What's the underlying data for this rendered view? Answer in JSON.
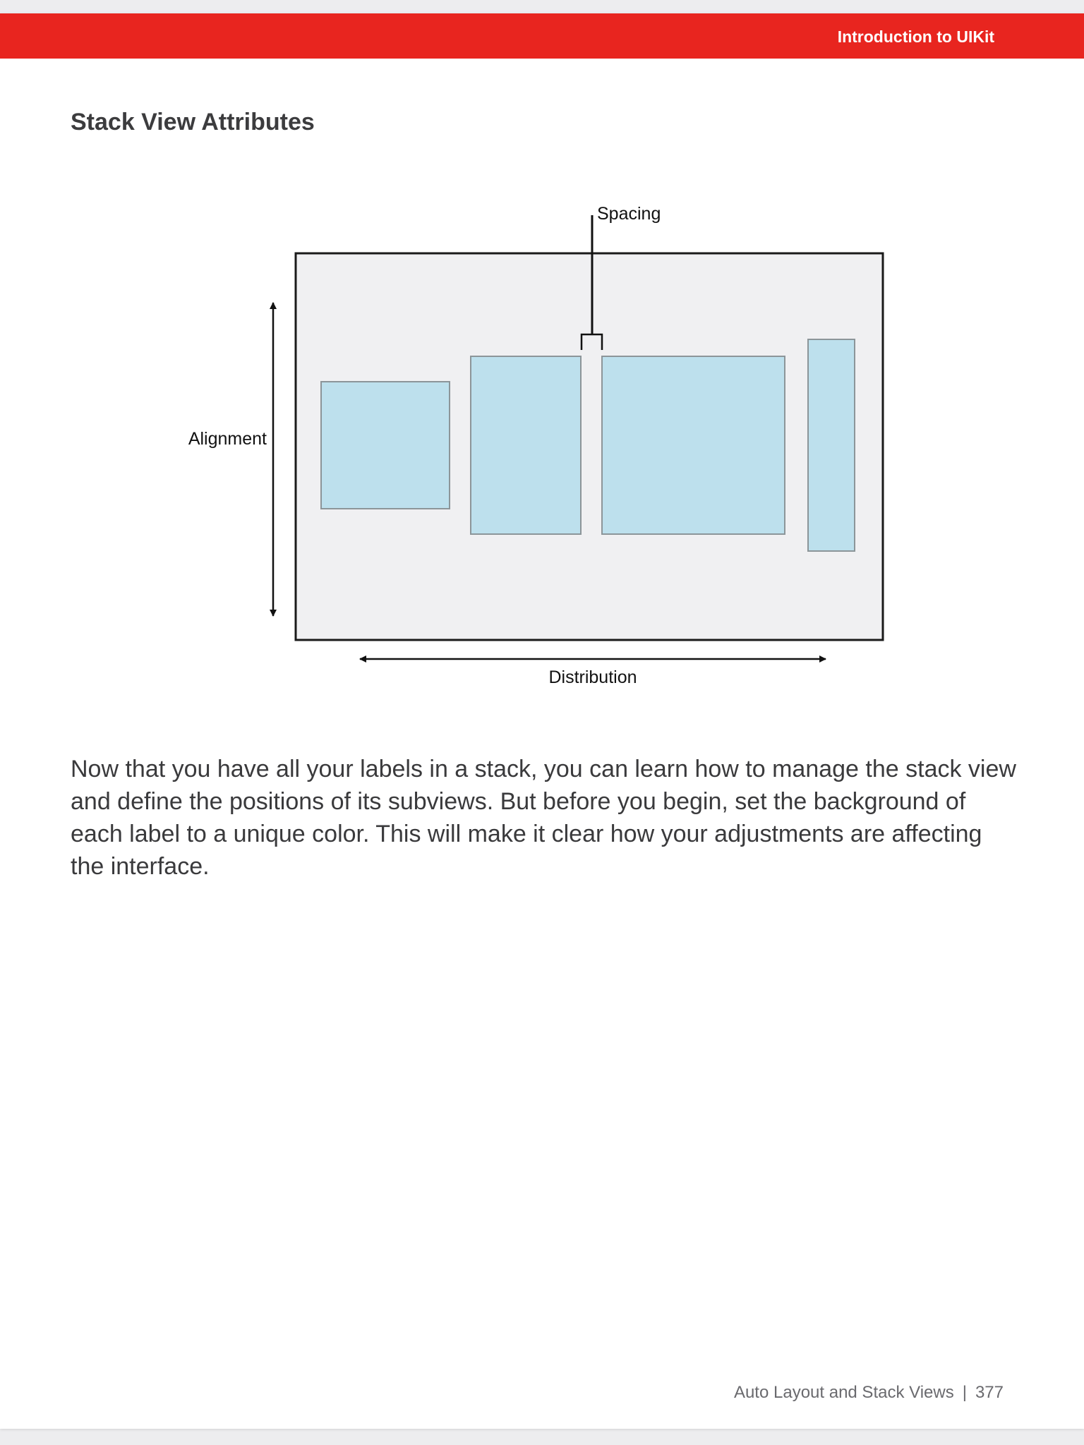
{
  "header": {
    "title": "Introduction to UIKit"
  },
  "section": {
    "title": "Stack View Attributes"
  },
  "diagram": {
    "labels": {
      "spacing": "Spacing",
      "alignment": "Alignment",
      "distribution": "Distribution"
    },
    "colors": {
      "container_fill": "#f0f0f2",
      "subview_fill": "#bde0ed",
      "subview_stroke": "#8c9599",
      "line": "#111111"
    }
  },
  "body": {
    "paragraph": "Now that you have all your labels in a stack, you can learn how to manage the stack view and define the positions of its subviews. But before you begin, set the background of each label to a unique color. This will make it clear how your adjustments are affecting the interface."
  },
  "footer": {
    "chapter": "Auto Layout and Stack Views",
    "separator": "|",
    "page_number": "377"
  },
  "colors": {
    "header_red": "#e8251f",
    "header_text": "#ffffff",
    "body_text": "#3a3a3c"
  }
}
